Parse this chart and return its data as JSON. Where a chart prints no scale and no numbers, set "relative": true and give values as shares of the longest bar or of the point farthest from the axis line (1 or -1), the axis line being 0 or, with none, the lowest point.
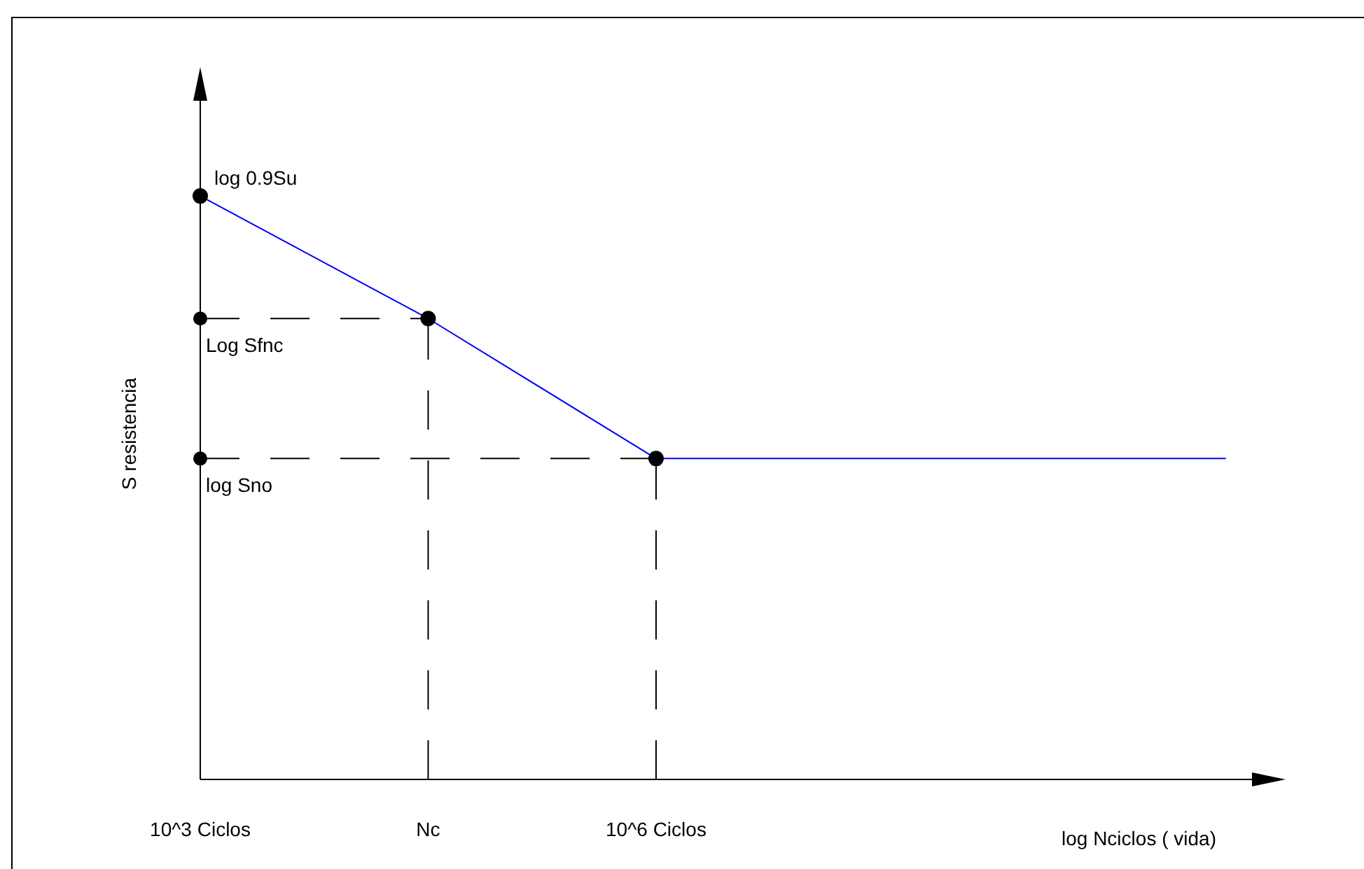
{
  "chart_data": {
    "type": "line",
    "relative": true,
    "xlabel": "log Nciclos  ( vida)",
    "ylabel": "S resistencia",
    "categories": [
      "10^3 Ciclos",
      null,
      null,
      null,
      "Nc",
      null,
      null,
      null,
      "10^6 Ciclos",
      null,
      null,
      null,
      null,
      null,
      null,
      null,
      null,
      null,
      null,
      null
    ],
    "grid": false,
    "legend": false,
    "series": [
      {
        "color": "#0000ff",
        "values": [
          1,
          null,
          null,
          null,
          0.79,
          null,
          null,
          null,
          0.55,
          null,
          null,
          null,
          null,
          null,
          null,
          null,
          null,
          null,
          null,
          null
        ],
        "marker": "circle"
      },
      {
        "color": "#0000ff",
        "values": [
          null,
          null,
          null,
          null,
          null,
          null,
          null,
          null,
          0.55,
          null,
          null,
          null,
          null,
          null,
          null,
          null,
          null,
          null,
          0.55,
          null
        ],
        "marker": "none"
      }
    ],
    "ref_lines": [
      {
        "axis": "y",
        "value": 0.79,
        "color": "#000000",
        "line_style": "dashed"
      },
      {
        "axis": "y",
        "value": 0.55,
        "color": "#000000",
        "line_style": "dashed"
      },
      {
        "axis": "x",
        "value": "Nc",
        "color": "#000000",
        "line_style": "dashed"
      },
      {
        "axis": "x",
        "value": "10^6 Ciclos",
        "color": "#000000",
        "line_style": "dashed"
      }
    ],
    "annotations": [
      {
        "text": "log 0.9Su",
        "x": "10^3 Ciclos",
        "y": 1
      },
      {
        "text": "Log Sfnc",
        "x": "10^3 Ciclos",
        "y": 0.79
      },
      {
        "text": "log Sno",
        "x": "10^3 Ciclos",
        "y": 0.55
      }
    ]
  }
}
